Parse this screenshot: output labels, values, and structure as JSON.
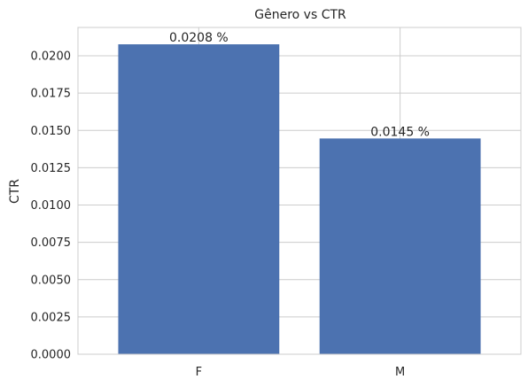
{
  "chart_data": {
    "type": "bar",
    "title": "Gênero vs CTR",
    "xlabel": "",
    "ylabel": "CTR",
    "categories": [
      "F",
      "M"
    ],
    "values": [
      0.02077,
      0.01446
    ],
    "bar_labels": [
      "0.0208 %",
      "0.0145 %"
    ],
    "ylim": [
      0,
      0.0219
    ],
    "yticks": [
      0,
      0.0025,
      0.005,
      0.0075,
      0.01,
      0.0125,
      0.015,
      0.0175,
      0.02
    ],
    "ytick_labels": [
      "0.0000",
      "0.0025",
      "0.0050",
      "0.0075",
      "0.0100",
      "0.0125",
      "0.0150",
      "0.0175",
      "0.0200"
    ],
    "grid": true,
    "bar_color": "#4c72b0",
    "grid_color": "#cccccc"
  }
}
